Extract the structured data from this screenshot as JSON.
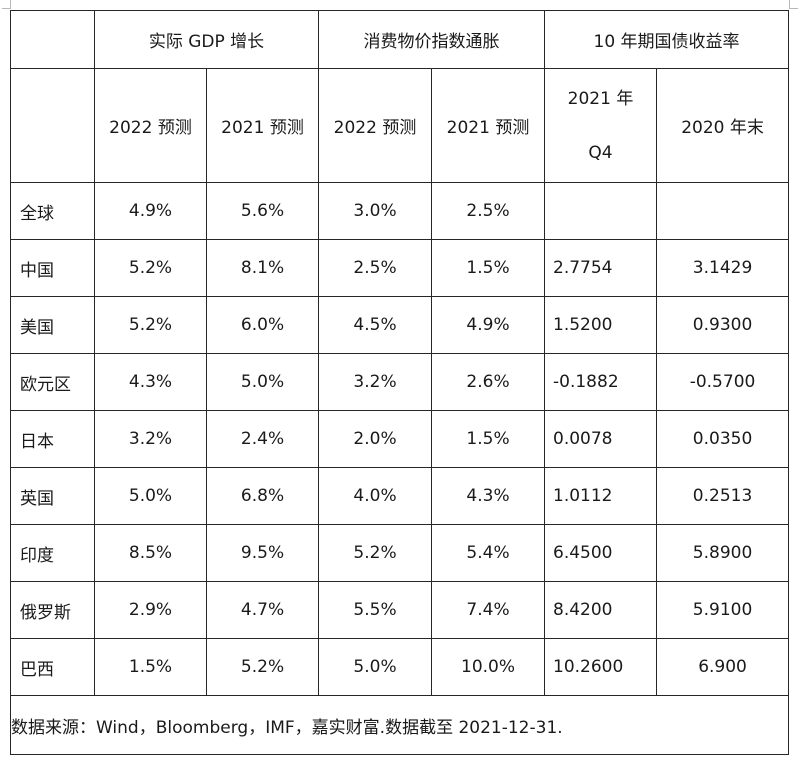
{
  "table": {
    "headers": {
      "group_gdp": "实际 GDP 增长",
      "group_cpi": "消费物价指数通胀",
      "group_bond": "10 年期国债收益率",
      "gdp_2022": "2022 预测",
      "gdp_2021": "2021 预测",
      "cpi_2022": "2022 预测",
      "cpi_2021": "2021 预测",
      "bond_q4_line1": "2021 年",
      "bond_q4_line2": "Q4",
      "bond_2020": "2020 年末"
    },
    "rows": [
      {
        "region": "全球",
        "gdp_2022": "4.9%",
        "gdp_2021": "5.6%",
        "cpi_2022": "3.0%",
        "cpi_2021": "2.5%",
        "bond_q4": "",
        "bond_2020": ""
      },
      {
        "region": "中国",
        "gdp_2022": "5.2%",
        "gdp_2021": "8.1%",
        "cpi_2022": "2.5%",
        "cpi_2021": "1.5%",
        "bond_q4": "2.7754",
        "bond_2020": "3.1429"
      },
      {
        "region": "美国",
        "gdp_2022": "5.2%",
        "gdp_2021": "6.0%",
        "cpi_2022": "4.5%",
        "cpi_2021": "4.9%",
        "bond_q4": "1.5200",
        "bond_2020": "0.9300"
      },
      {
        "region": "欧元区",
        "gdp_2022": "4.3%",
        "gdp_2021": "5.0%",
        "cpi_2022": "3.2%",
        "cpi_2021": "2.6%",
        "bond_q4": "-0.1882",
        "bond_2020": "-0.5700"
      },
      {
        "region": "日本",
        "gdp_2022": "3.2%",
        "gdp_2021": "2.4%",
        "cpi_2022": "2.0%",
        "cpi_2021": "1.5%",
        "bond_q4": "0.0078",
        "bond_2020": "0.0350"
      },
      {
        "region": "英国",
        "gdp_2022": "5.0%",
        "gdp_2021": "6.8%",
        "cpi_2022": "4.0%",
        "cpi_2021": "4.3%",
        "bond_q4": "1.0112",
        "bond_2020": "0.2513"
      },
      {
        "region": "印度",
        "gdp_2022": "8.5%",
        "gdp_2021": "9.5%",
        "cpi_2022": "5.2%",
        "cpi_2021": "5.4%",
        "bond_q4": "6.4500",
        "bond_2020": "5.8900"
      },
      {
        "region": "俄罗斯",
        "gdp_2022": "2.9%",
        "gdp_2021": "4.7%",
        "cpi_2022": "5.5%",
        "cpi_2021": "7.4%",
        "bond_q4": "8.4200",
        "bond_2020": "5.9100"
      },
      {
        "region": "巴西",
        "gdp_2022": "1.5%",
        "gdp_2021": "5.2%",
        "cpi_2022": "5.0%",
        "cpi_2021": "10.0%",
        "bond_q4": "10.2600",
        "bond_2020": "6.900"
      }
    ],
    "source_note": "数据来源：Wind，Bloomberg，IMF，嘉实财富.数据截至 2021-12-31."
  }
}
